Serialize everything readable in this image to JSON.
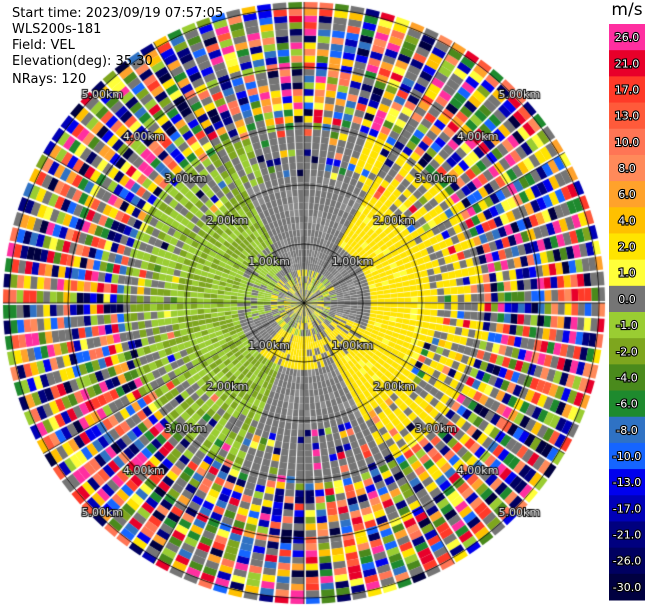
{
  "info": {
    "start_time": "Start time: 2023/09/19 07:57:05",
    "station": "WLS200s-181",
    "field": "Field: VEL",
    "elevation": "Elevation(deg): 35.30",
    "nrays": "NRays: 120"
  },
  "colorbar": {
    "unit": "m/s",
    "entries": [
      {
        "label": "26.0",
        "color": "#ff2fa0"
      },
      {
        "label": "21.0",
        "color": "#e8002a"
      },
      {
        "label": "17.0",
        "color": "#ff3a28"
      },
      {
        "label": "13.0",
        "color": "#ff5a3a"
      },
      {
        "label": "10.0",
        "color": "#ff7555"
      },
      {
        "label": "8.0",
        "color": "#ff8a5a"
      },
      {
        "label": "6.0",
        "color": "#ffa22b"
      },
      {
        "label": "4.0",
        "color": "#ffc000"
      },
      {
        "label": "2.0",
        "color": "#ffe400"
      },
      {
        "label": "1.0",
        "color": "#ffff3a"
      },
      {
        "label": "0.0",
        "color": "#757575"
      },
      {
        "label": "-1.0",
        "color": "#9acd32"
      },
      {
        "label": "-2.0",
        "color": "#7ea61e"
      },
      {
        "label": "-4.0",
        "color": "#4a8a1c"
      },
      {
        "label": "-6.0",
        "color": "#1e8a2e"
      },
      {
        "label": "-8.0",
        "color": "#2f72c4"
      },
      {
        "label": "-10.0",
        "color": "#1565ff"
      },
      {
        "label": "-13.0",
        "color": "#0000ee"
      },
      {
        "label": "-17.0",
        "color": "#0000b8"
      },
      {
        "label": "-21.0",
        "color": "#00007f"
      },
      {
        "label": "-26.0",
        "color": "#000060"
      },
      {
        "label": "-30.0",
        "color": "#000040"
      }
    ]
  },
  "range_labels": [
    "1.00km",
    "2.00km",
    "3.00km",
    "4.00km",
    "5.00km"
  ]
}
